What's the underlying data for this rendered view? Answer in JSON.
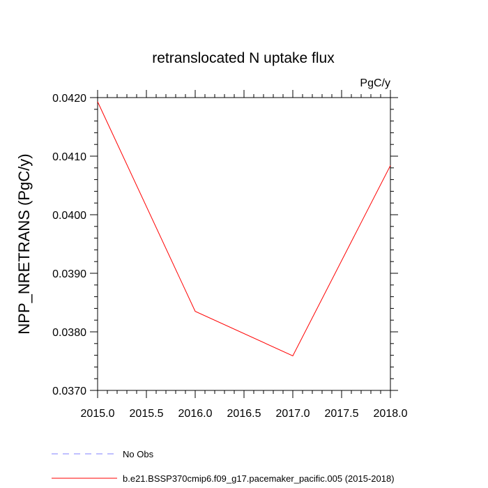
{
  "chart_data": {
    "type": "line",
    "title": "retranslocated N uptake flux",
    "units_label": "PgC/y",
    "ylabel": "NPP_NRETRANS  (PgC/y)",
    "xlabel": "",
    "xlim": [
      2015.0,
      2018.0
    ],
    "ylim": [
      0.037,
      0.042
    ],
    "xticks": [
      2015.0,
      2015.5,
      2016.0,
      2016.5,
      2017.0,
      2017.5,
      2018.0
    ],
    "xtick_labels": [
      "2015.0",
      "2015.5",
      "2016.0",
      "2016.5",
      "2017.0",
      "2017.5",
      "2018.0"
    ],
    "yticks": [
      0.037,
      0.038,
      0.039,
      0.04,
      0.041,
      0.042
    ],
    "ytick_labels": [
      "0.0370",
      "0.0380",
      "0.0390",
      "0.0400",
      "0.0410",
      "0.0420"
    ],
    "grid": false,
    "legend_position": "bottom-left",
    "series": [
      {
        "name": "b.e21.BSSP370cmip6.f09_g17.pacemaker_pacific.005 (2015-2018)",
        "color": "#ff0000",
        "dash": "solid",
        "x": [
          2015.0,
          2016.0,
          2017.0,
          2018.0
        ],
        "y": [
          0.04193,
          0.03835,
          0.03759,
          0.04084
        ]
      }
    ],
    "legend": [
      {
        "label": "No Obs",
        "color": "#8080ff",
        "dash": "dashed"
      },
      {
        "label": "b.e21.BSSP370cmip6.f09_g17.pacemaker_pacific.005 (2015-2018)",
        "color": "#ff0000",
        "dash": "solid"
      }
    ]
  }
}
